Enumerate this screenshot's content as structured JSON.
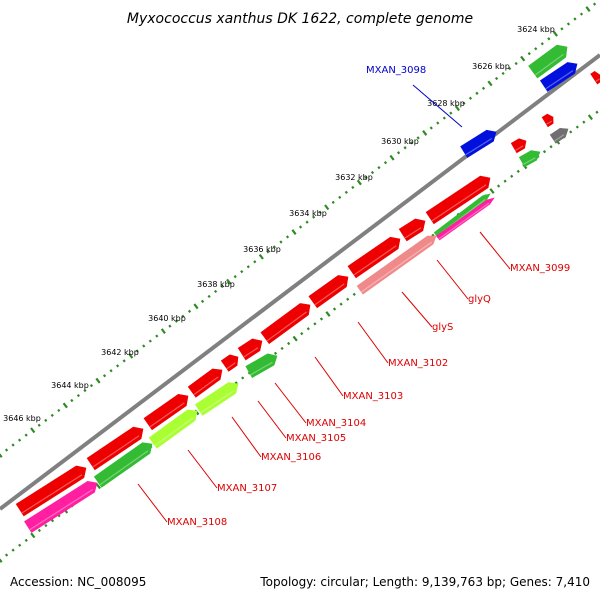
{
  "title": "Myxococcus xanthus DK 1622, complete genome",
  "footer": {
    "accession": "Accession: NC_008095",
    "summary": "Topology: circular; Length: 9,139,763 bp; Genes: 7,410"
  },
  "colors": {
    "backbone": "#808080",
    "ticks": "#2e8b22",
    "red": "#ee0000",
    "green": "#33bb33",
    "lime": "#aaff33",
    "blue": "#0011dd",
    "pink": "#ff1fa0",
    "salmon": "#f08a8a",
    "grey": "#6f6f6f",
    "label_red": "#dd0000",
    "label_blue": "#0000cc"
  },
  "kbp_labels": [
    "3624 kbp",
    "3626 kbp",
    "3628 kbp",
    "3630 kbp",
    "3632 kbp",
    "3634 kbp",
    "3636 kbp",
    "3638 kbp",
    "3640 kbp",
    "3642 kbp",
    "3644 kbp",
    "3646 kbp"
  ],
  "gene_labels": [
    {
      "text": "MXAN_3098",
      "color": "blue"
    },
    {
      "text": "MXAN_3099",
      "color": "red"
    },
    {
      "text": "glyQ",
      "color": "red"
    },
    {
      "text": "glyS",
      "color": "red"
    },
    {
      "text": "MXAN_3102",
      "color": "red"
    },
    {
      "text": "MXAN_3103",
      "color": "red"
    },
    {
      "text": "MXAN_3104",
      "color": "red"
    },
    {
      "text": "MXAN_3105",
      "color": "red"
    },
    {
      "text": "MXAN_3106",
      "color": "red"
    },
    {
      "text": "MXAN_3107",
      "color": "red"
    },
    {
      "text": "MXAN_3108",
      "color": "red"
    }
  ]
}
